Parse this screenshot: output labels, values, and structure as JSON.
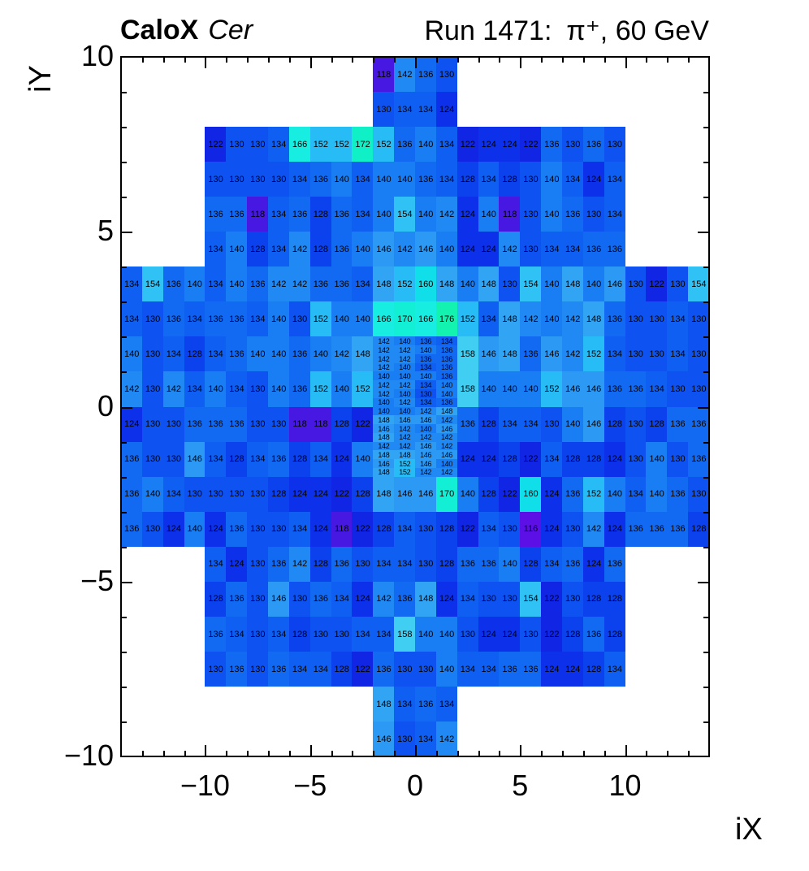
{
  "header": {
    "experiment": "CaloX",
    "detector": "Cer",
    "run_label": "Run 1471:",
    "beam_label": "π⁺, 60 GeV"
  },
  "chart_data": {
    "type": "heatmap",
    "title": "CaloX Cer  Run 1471: π⁺, 60 GeV",
    "xlabel": "iX",
    "ylabel": "iY",
    "xlim": [
      -14,
      14
    ],
    "ylim": [
      -10,
      10
    ],
    "grid": false,
    "x_major_ticks": [
      -10,
      -5,
      0,
      5,
      10
    ],
    "y_major_ticks": [
      -10,
      -5,
      0,
      5,
      10
    ],
    "value_text_color": "#000000",
    "palette": {
      "116": "#5C10E6",
      "118": "#4618E2",
      "122": "#1126E4",
      "124": "#0D31EA",
      "128": "#0C41EE",
      "130": "#0E53F1",
      "134": "#0F5FF2",
      "136": "#126AF3",
      "140": "#197DF4",
      "142": "#2189F4",
      "146": "#2C9AF5",
      "148": "#31A4F3",
      "152": "#27BCF6",
      "154": "#30C2F4",
      "158": "#40CEF3",
      "160": "#10DEE8",
      "166": "#18EDE2",
      "170": "#12EFD4",
      "172": "#0FF0C6",
      "176": "#14F2B0"
    },
    "rows": [
      {
        "iy": 9,
        "ix0": -2,
        "v": [
          118,
          142,
          136,
          130
        ]
      },
      {
        "iy": 8,
        "ix0": -2,
        "v": [
          130,
          134,
          134,
          124
        ]
      },
      {
        "iy": 7,
        "ix0": -10,
        "v": [
          122,
          130,
          130,
          134,
          166,
          152,
          152,
          172,
          152,
          136,
          140,
          134,
          122,
          124,
          124,
          122,
          136,
          130,
          136,
          130
        ]
      },
      {
        "iy": 6,
        "ix0": -10,
        "v": [
          130,
          130,
          130,
          130,
          134,
          136,
          140,
          134,
          140,
          140,
          136,
          134,
          128,
          134,
          128,
          130,
          140,
          134,
          124,
          134
        ]
      },
      {
        "iy": 5,
        "ix0": -10,
        "v": [
          136,
          136,
          118,
          134,
          136,
          128,
          136,
          134,
          140,
          154,
          140,
          142,
          124,
          140,
          118,
          130,
          140,
          136,
          130,
          134
        ]
      },
      {
        "iy": 4,
        "ix0": -10,
        "v": [
          134,
          140,
          128,
          134,
          142,
          128,
          136,
          140,
          146,
          142,
          146,
          140,
          124,
          124,
          142,
          130,
          134,
          134,
          136,
          136
        ]
      },
      {
        "iy": 3,
        "ix0": -14,
        "v": [
          134,
          154,
          136,
          140,
          134,
          140,
          136,
          142,
          142,
          136,
          136,
          134,
          148,
          152,
          160,
          148,
          140,
          148,
          130,
          154,
          140,
          148,
          140,
          146,
          130,
          122,
          130,
          154
        ]
      },
      {
        "iy": 2,
        "ix0": -14,
        "v": [
          134,
          130,
          136,
          134,
          136,
          136,
          134,
          140,
          130,
          152,
          140,
          140,
          166,
          170,
          166,
          176,
          152,
          134,
          148,
          142,
          140,
          142,
          148,
          136,
          130,
          130,
          134,
          130
        ]
      },
      {
        "iy": 1,
        "ix0": -14,
        "v": [
          140,
          130,
          134,
          128,
          134,
          136,
          140,
          140,
          136,
          140,
          142,
          148
        ]
      },
      {
        "iy": 1,
        "ix0": 2,
        "v": [
          158,
          146,
          148,
          136,
          146,
          142,
          152,
          134,
          130,
          130,
          134,
          130
        ]
      },
      {
        "iy": 0,
        "ix0": -14,
        "v": [
          142,
          130,
          142,
          134,
          140,
          134,
          130,
          140,
          136,
          152,
          140,
          152
        ]
      },
      {
        "iy": 0,
        "ix0": 2,
        "v": [
          158,
          140,
          140,
          140,
          152,
          146,
          146,
          136,
          136,
          134,
          130,
          130
        ]
      },
      {
        "iy": -1,
        "ix0": -14,
        "v": [
          124,
          130,
          130,
          136,
          136,
          136,
          130,
          130,
          118,
          118,
          128,
          122
        ]
      },
      {
        "iy": -1,
        "ix0": 2,
        "v": [
          136,
          128,
          134,
          134,
          130,
          140,
          146,
          128,
          130,
          128,
          136,
          136
        ]
      },
      {
        "iy": -2,
        "ix0": -14,
        "v": [
          136,
          130,
          130,
          146,
          134,
          128,
          134,
          136,
          128,
          134,
          124,
          140
        ]
      },
      {
        "iy": -2,
        "ix0": 2,
        "v": [
          124,
          124,
          128,
          122,
          134,
          128,
          128,
          124,
          130,
          140,
          130,
          136
        ]
      },
      {
        "iy": -3,
        "ix0": -14,
        "v": [
          136,
          140,
          134,
          130,
          130,
          130,
          130,
          128,
          124,
          124,
          122,
          128,
          148,
          146,
          146,
          170,
          140,
          128,
          122,
          160,
          124,
          136,
          152,
          140,
          134,
          140,
          136,
          130
        ]
      },
      {
        "iy": -4,
        "ix0": -14,
        "v": [
          136,
          130,
          124,
          140,
          124,
          136,
          130,
          130,
          134,
          124,
          118,
          122,
          128,
          134,
          130,
          128,
          122,
          134,
          130,
          116,
          124,
          130,
          142,
          124,
          136,
          136,
          136,
          128
        ]
      },
      {
        "iy": -5,
        "ix0": -10,
        "v": [
          134,
          124,
          130,
          136,
          142,
          128,
          136,
          130,
          134,
          134,
          130,
          128,
          136,
          136,
          140,
          128,
          134,
          136,
          124,
          136
        ]
      },
      {
        "iy": -6,
        "ix0": -10,
        "v": [
          128,
          136,
          130,
          146,
          130,
          136,
          134,
          124,
          142,
          136,
          148,
          124,
          134,
          130,
          130,
          154,
          122,
          130,
          128,
          128
        ]
      },
      {
        "iy": -7,
        "ix0": -10,
        "v": [
          136,
          134,
          130,
          134,
          128,
          130,
          130,
          134,
          134,
          158,
          140,
          140,
          130,
          124,
          124,
          130,
          122,
          128,
          136,
          128
        ]
      },
      {
        "iy": -8,
        "ix0": -10,
        "v": [
          130,
          136,
          130,
          136,
          134,
          134,
          128,
          122,
          136,
          130,
          130,
          140,
          134,
          134,
          136,
          136,
          124,
          124,
          128,
          134
        ]
      },
      {
        "iy": -9,
        "ix0": -2,
        "v": [
          148,
          134,
          136,
          134
        ]
      },
      {
        "iy": -10,
        "ix0": -2,
        "v": [
          146,
          130,
          134,
          142
        ]
      }
    ],
    "fine_block": {
      "ix0": -2,
      "n_cols": 4,
      "col_width": 1.0,
      "iy_top": 2,
      "row_height": 0.25,
      "rows": [
        [
          142,
          140,
          136,
          134
        ],
        [
          142,
          142,
          140,
          136
        ],
        [
          142,
          142,
          136,
          136
        ],
        [
          142,
          140,
          134,
          136
        ],
        [
          140,
          140,
          140,
          136
        ],
        [
          142,
          142,
          134,
          140
        ],
        [
          142,
          140,
          130,
          140
        ],
        [
          140,
          142,
          134,
          136
        ],
        [
          140,
          140,
          142,
          148
        ],
        [
          148,
          146,
          146,
          142
        ],
        [
          146,
          142,
          140,
          146
        ],
        [
          148,
          142,
          142,
          142
        ],
        [
          142,
          142,
          146,
          142
        ],
        [
          148,
          148,
          146,
          146
        ],
        [
          146,
          152,
          146,
          140
        ],
        [
          148,
          152,
          142,
          142
        ]
      ]
    }
  }
}
